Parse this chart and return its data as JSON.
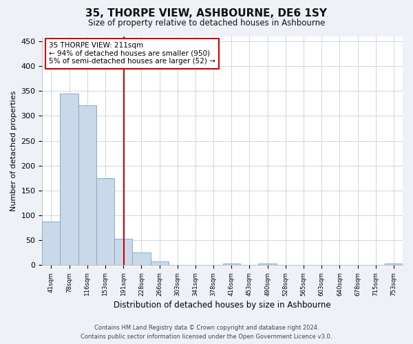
{
  "title": "35, THORPE VIEW, ASHBOURNE, DE6 1SY",
  "subtitle": "Size of property relative to detached houses in Ashbourne",
  "xlabel": "Distribution of detached houses by size in Ashbourne",
  "ylabel": "Number of detached properties",
  "annotation_line1": "35 THORPE VIEW: 211sqm",
  "annotation_line2": "← 94% of detached houses are smaller (950)",
  "annotation_line3": "5% of semi-detached houses are larger (52) →",
  "bar_edges": [
    41,
    78,
    116,
    153,
    191,
    228,
    266,
    303,
    341,
    378,
    416,
    453,
    490,
    528,
    565,
    603,
    640,
    678,
    715,
    753,
    790
  ],
  "bar_heights": [
    88,
    345,
    321,
    175,
    53,
    25,
    8,
    0,
    0,
    0,
    4,
    0,
    3,
    0,
    0,
    0,
    0,
    0,
    0,
    3
  ],
  "bar_color": "#c9d9ea",
  "bar_edge_color": "#85aac8",
  "vline_color": "#cc0000",
  "vline_x": 211,
  "box_color": "#cc0000",
  "ylim": [
    0,
    460
  ],
  "yticks": [
    0,
    50,
    100,
    150,
    200,
    250,
    300,
    350,
    400,
    450
  ],
  "footer_line1": "Contains HM Land Registry data © Crown copyright and database right 2024.",
  "footer_line2": "Contains public sector information licensed under the Open Government Licence v3.0.",
  "background_color": "#eef2f7",
  "plot_background": "#ffffff",
  "grid_color": "#c5cfe0"
}
